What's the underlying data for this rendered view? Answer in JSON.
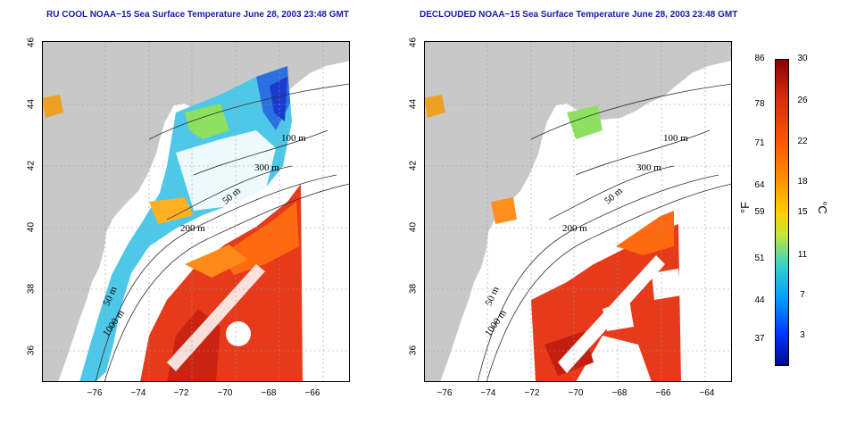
{
  "left_panel": {
    "title": "RU COOL NOAA−15 Sea Surface Temperature June 28, 2003 23:48 GMT",
    "contours": {
      "c100": "100 m",
      "c300": "300 m",
      "c50": "50 m",
      "c200": "200 m",
      "c50b": "50 m",
      "c1000": "1000 m"
    }
  },
  "right_panel": {
    "title": "DECLOUDED NOAA−15 Sea Surface Temperature June 28, 2003 23:48 GMT",
    "contours": {
      "c100": "100 m",
      "c300": "300 m",
      "c50": "50 m",
      "c200": "200 m",
      "c50b": "50 m",
      "c1000": "1000 m"
    }
  },
  "axes": {
    "lat_ticks": [
      "36",
      "38",
      "40",
      "42",
      "44",
      "46"
    ],
    "lon_ticks": [
      "−76",
      "−74",
      "−72",
      "−70",
      "−68",
      "−66",
      "−64"
    ]
  },
  "colorbar": {
    "f_ticks": [
      "86",
      "78",
      "71",
      "64",
      "59",
      "51",
      "44",
      "37"
    ],
    "c_ticks": [
      "30",
      "26",
      "22",
      "18",
      "15",
      "11",
      "7",
      "3"
    ],
    "f_label": "°F",
    "c_label": "°C",
    "colors": [
      "#8b0000",
      "#d42a10",
      "#ff5a00",
      "#ff9600",
      "#ffd000",
      "#c8e632",
      "#3cd2c8",
      "#00a0ff",
      "#0032ff",
      "#000a8c"
    ]
  },
  "colors": {
    "land": "#c8c8c8",
    "title": "#1a1aa8",
    "grid": "#9a9a9a"
  }
}
